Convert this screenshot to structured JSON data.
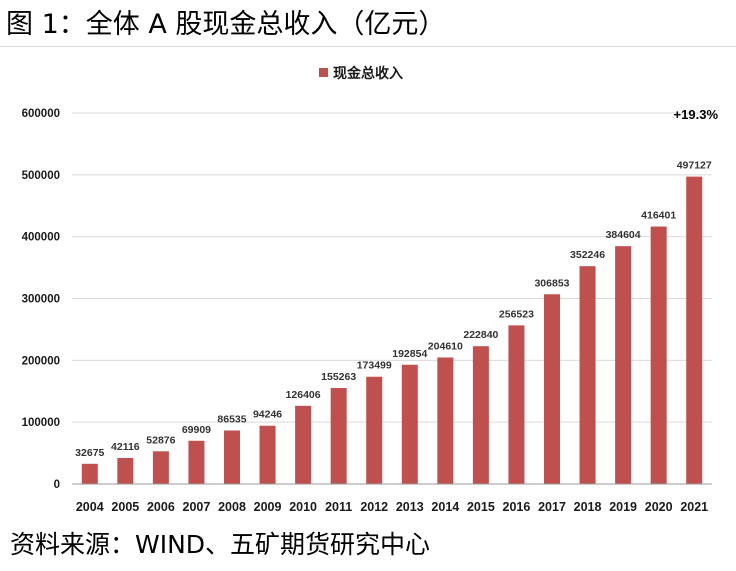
{
  "header": {
    "title": "图 1：全体 A 股现金总收入（亿元）"
  },
  "footer": {
    "source": "资料来源：WIND、五矿期货研究中心"
  },
  "colors": {
    "bar": "#c0504d",
    "grid": "#d9d9d9"
  },
  "chart_data": {
    "type": "bar",
    "title": "",
    "xlabel": "",
    "ylabel": "",
    "ylim": [
      0,
      600000
    ],
    "yticks": [
      0,
      100000,
      200000,
      300000,
      400000,
      500000,
      600000
    ],
    "ytick_labels": [
      "0",
      "100000",
      "200000",
      "300000",
      "400000",
      "500000",
      "600000"
    ],
    "legend": {
      "label": "现金总收入",
      "position": "top-center"
    },
    "grid": true,
    "categories": [
      "2004",
      "2005",
      "2006",
      "2007",
      "2008",
      "2009",
      "2010",
      "2011",
      "2012",
      "2013",
      "2014",
      "2015",
      "2016",
      "2017",
      "2018",
      "2019",
      "2020",
      "2021"
    ],
    "values": [
      32675,
      42116,
      52876,
      69909,
      86535,
      94246,
      126406,
      155263,
      173499,
      192854,
      204610,
      222840,
      256523,
      306853,
      352246,
      384604,
      416401,
      497127
    ],
    "value_labels": [
      "32675",
      "42116",
      "52876",
      "69909",
      "86535",
      "94246",
      "126406",
      "155263",
      "173499",
      "192854",
      "204610",
      "222840",
      "256523",
      "306853",
      "352246",
      "384604",
      "416401",
      "497127"
    ],
    "annotation": "+19.3%"
  }
}
